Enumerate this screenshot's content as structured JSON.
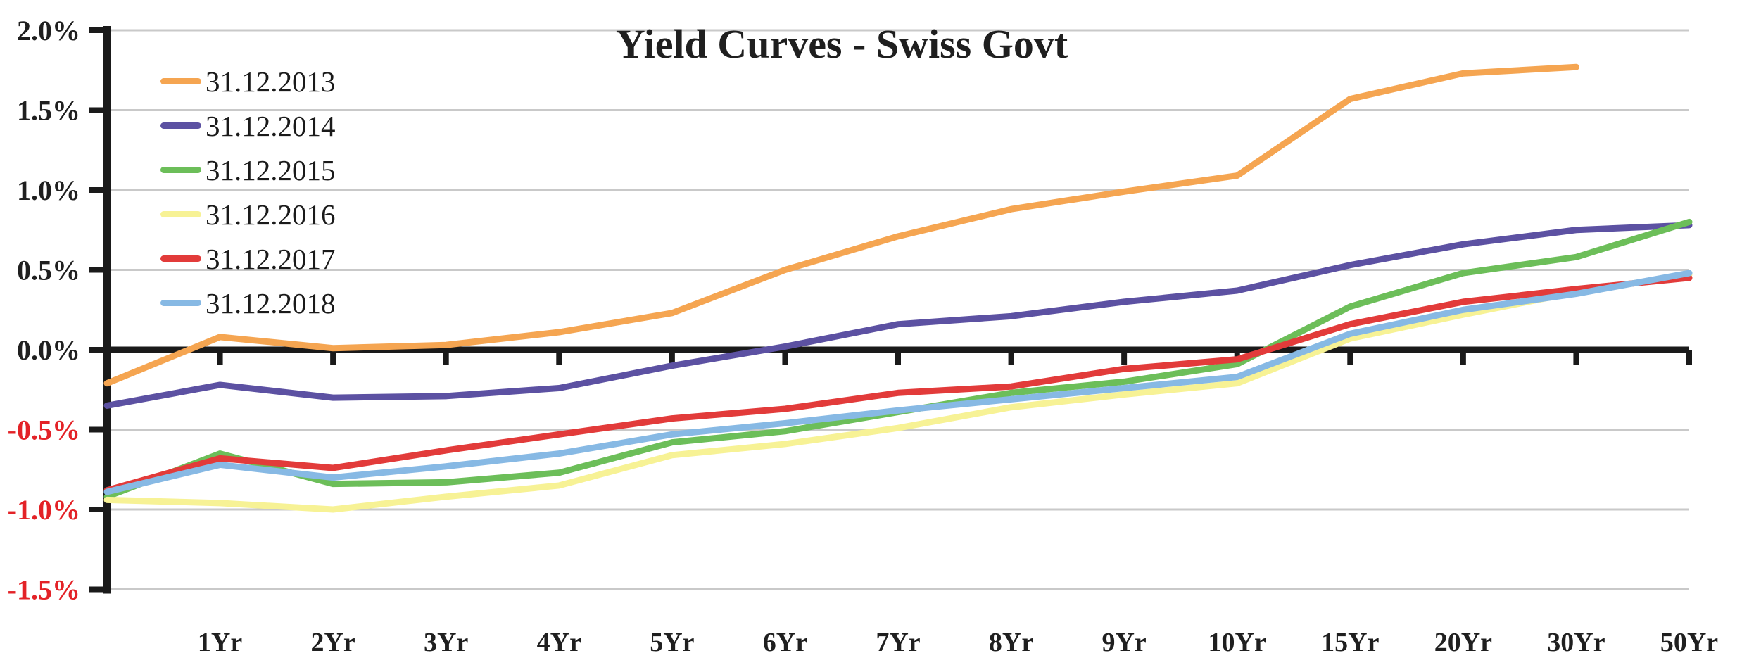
{
  "title": "Yield Curves - Swiss Govt",
  "colors": {
    "axis": "#1a1a1a",
    "grid": "#c9c9c9",
    "tick_label_positive": "#1f1f1f",
    "tick_label_negative": "#e32227",
    "background": "#ffffff"
  },
  "chart_data": {
    "type": "line",
    "title": "Yield Curves - Swiss Govt",
    "unit": "%",
    "categories": [
      "",
      "1Yr",
      "2Yr",
      "3Yr",
      "4Yr",
      "5Yr",
      "6Yr",
      "7Yr",
      "8Yr",
      "9Yr",
      "10Yr",
      "15Yr",
      "20Yr",
      "30Yr",
      "50Yr"
    ],
    "x_axis_note": "first data point sits on the y-axis with no label; maturities are evenly spaced categories",
    "y_ticks": [
      2.0,
      1.5,
      1.0,
      0.5,
      0.0,
      -0.5,
      -1.0,
      -1.5
    ],
    "y_tick_labels": [
      "2.0%",
      "1.5%",
      "1.0%",
      "0.5%",
      "0.0%",
      "-0.5%",
      "-1.0%",
      "-1.5%"
    ],
    "ylim": [
      -1.5,
      2.0
    ],
    "grid": true,
    "zero_line_emphasized": true,
    "legend_position": "top-left",
    "series": [
      {
        "name": "31.12.2013",
        "color": "#f5a551",
        "values": [
          -0.21,
          0.08,
          0.01,
          0.03,
          0.11,
          0.23,
          0.5,
          0.71,
          0.88,
          0.99,
          1.09,
          1.57,
          1.73,
          1.77,
          null
        ]
      },
      {
        "name": "31.12.2014",
        "color": "#5c51a2",
        "values": [
          -0.35,
          -0.22,
          -0.3,
          -0.29,
          -0.24,
          -0.1,
          0.02,
          0.16,
          0.21,
          0.3,
          0.37,
          0.53,
          0.66,
          0.75,
          0.78
        ]
      },
      {
        "name": "31.12.2015",
        "color": "#6cbe59",
        "values": [
          -0.92,
          -0.65,
          -0.84,
          -0.83,
          -0.77,
          -0.58,
          -0.51,
          -0.39,
          -0.27,
          -0.2,
          -0.09,
          0.27,
          0.48,
          0.58,
          0.8
        ]
      },
      {
        "name": "31.12.2016",
        "color": "#f7f295",
        "values": [
          -0.94,
          -0.96,
          -1.0,
          -0.92,
          -0.85,
          -0.66,
          -0.59,
          -0.49,
          -0.36,
          -0.28,
          -0.21,
          0.07,
          0.22,
          0.36,
          0.47
        ]
      },
      {
        "name": "31.12.2017",
        "color": "#e23b3a",
        "values": [
          -0.88,
          -0.68,
          -0.74,
          -0.63,
          -0.53,
          -0.43,
          -0.37,
          -0.27,
          -0.23,
          -0.12,
          -0.06,
          0.16,
          0.3,
          0.38,
          0.45
        ]
      },
      {
        "name": "31.12.2018",
        "color": "#87b9e4",
        "values": [
          -0.89,
          -0.72,
          -0.8,
          -0.73,
          -0.65,
          -0.53,
          -0.46,
          -0.38,
          -0.31,
          -0.24,
          -0.17,
          0.1,
          0.25,
          0.35,
          0.48
        ]
      }
    ]
  }
}
